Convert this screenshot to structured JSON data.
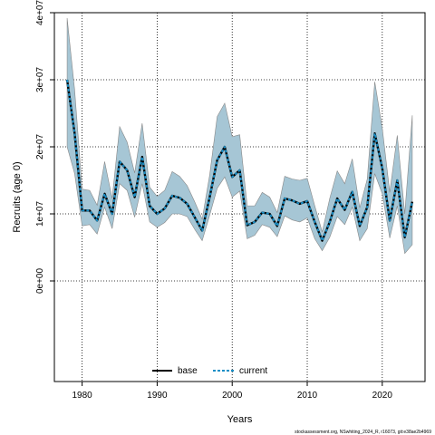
{
  "chart_data": {
    "type": "line",
    "xlabel": "Years",
    "ylabel": "Recruits (age 0)",
    "xlim": [
      1976.3,
      2025.7
    ],
    "ylim": [
      -15000000.0,
      40000000.0
    ],
    "x_ticks": [
      1980,
      1990,
      2000,
      2010,
      2020
    ],
    "x_tick_labels": [
      "1980",
      "1990",
      "2000",
      "2010",
      "2020"
    ],
    "y_ticks": [
      0,
      10000000,
      20000000,
      30000000,
      40000000
    ],
    "y_tick_labels": [
      "0e+00",
      "1e+07",
      "2e+07",
      "3e+07",
      "4e+07"
    ],
    "grid": true,
    "legend_position": "bottom-center",
    "footer": "stockassessment.org, NSwhiting_2024_R, r16073, git:e38ae2b4969",
    "colors": {
      "band_fill": "#a6c6d5",
      "band_edge": "#888888",
      "base_line": "#000000",
      "current_line": "#1a8fc6"
    },
    "x": [
      1978,
      1979,
      1980,
      1981,
      1982,
      1983,
      1984,
      1985,
      1986,
      1987,
      1988,
      1989,
      1990,
      1991,
      1992,
      1993,
      1994,
      1995,
      1996,
      1997,
      1998,
      1999,
      2000,
      2001,
      2002,
      2003,
      2004,
      2005,
      2006,
      2007,
      2008,
      2009,
      2010,
      2011,
      2012,
      2013,
      2014,
      2015,
      2016,
      2017,
      2018,
      2019,
      2020,
      2021,
      2022,
      2023,
      2024
    ],
    "series": [
      {
        "name": "base",
        "style": "solid",
        "values": [
          30000000,
          22000000,
          10500000,
          10500000,
          9000000,
          13000000,
          10000000,
          17800000,
          16500000,
          12500000,
          18500000,
          11200000,
          10000000,
          10800000,
          12700000,
          12400000,
          11500000,
          9500000,
          7500000,
          12500000,
          18000000,
          20000000,
          15500000,
          16500000,
          8300000,
          8800000,
          10200000,
          10000000,
          8200000,
          12300000,
          12000000,
          11500000,
          11900000,
          8800000,
          6000000,
          8800000,
          12300000,
          10600000,
          13300000,
          8200000,
          11000000,
          22000000,
          16800000,
          9000000,
          15000000,
          6500000,
          11800000
        ]
      },
      {
        "name": "current",
        "style": "dashed",
        "values": [
          30000000,
          22000000,
          10500000,
          10500000,
          9000000,
          13000000,
          10000000,
          17800000,
          16500000,
          12500000,
          18500000,
          11200000,
          10000000,
          10800000,
          12700000,
          12400000,
          11500000,
          9500000,
          7500000,
          12500000,
          18000000,
          20000000,
          15500000,
          16500000,
          8300000,
          8800000,
          10200000,
          10000000,
          8200000,
          12300000,
          12000000,
          11500000,
          11900000,
          8800000,
          6000000,
          8800000,
          12300000,
          10600000,
          13300000,
          8200000,
          11000000,
          22000000,
          16800000,
          9000000,
          15000000,
          6500000,
          11800000
        ]
      }
    ],
    "confidence_band": {
      "lower": [
        20000000,
        16000000,
        8200000,
        8400000,
        7000000,
        11000000,
        7800000,
        14500000,
        13500000,
        9500000,
        14500000,
        8800000,
        8000000,
        8700000,
        10000000,
        10000000,
        9600000,
        7700000,
        6000000,
        9800000,
        13800000,
        15500000,
        12500000,
        13400000,
        6300000,
        6800000,
        8400000,
        8000000,
        6600000,
        9700000,
        9100000,
        8800000,
        9400000,
        6300000,
        4500000,
        6500000,
        9600000,
        8400000,
        11000000,
        6000000,
        7800000,
        16000000,
        13000000,
        6400000,
        11200000,
        4100000,
        5400000
      ],
      "upper": [
        39200000,
        28500000,
        13700000,
        13500000,
        11300000,
        17800000,
        12300000,
        23000000,
        20700000,
        16100000,
        23500000,
        14000000,
        12600000,
        13500000,
        16300000,
        15600000,
        14200000,
        11800000,
        9200000,
        15800000,
        24500000,
        26500000,
        21500000,
        21800000,
        11200000,
        11200000,
        13200000,
        12500000,
        10200000,
        15600000,
        15200000,
        15000000,
        15300000,
        11200000,
        7300000,
        12300000,
        16400000,
        14500000,
        18200000,
        10900000,
        15200000,
        29700000,
        22800000,
        13200000,
        21700000,
        10000000,
        24700000
      ]
    }
  }
}
